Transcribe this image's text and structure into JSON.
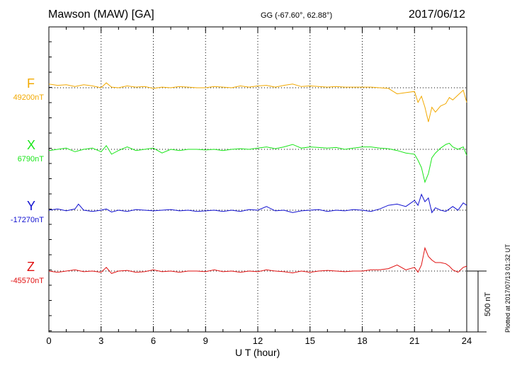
{
  "header": {
    "station": "Mawson (MAW)  [GA]",
    "coords": "GG (-67.60°,  62.88°)",
    "date": "2017/06/12"
  },
  "footer": {
    "xlabel": "U T (hour)",
    "plotted": "Plotted at 2017/07/13 01:32 UT"
  },
  "scale_bar": {
    "label": "500 nT",
    "value_nT": 500
  },
  "colors": {
    "F": "#f2a900",
    "X": "#19e619",
    "Y": "#1010d0",
    "Z": "#e01010"
  },
  "chart_data": {
    "type": "line",
    "xlabel": "U T (hour)",
    "xlim": [
      0,
      24
    ],
    "xticks": [
      0,
      3,
      6,
      9,
      12,
      15,
      18,
      21,
      24
    ],
    "xtick_labels": [
      "0",
      "3",
      "6",
      "9",
      "12",
      "15",
      "18",
      "21",
      "24"
    ],
    "y_unit": "nT",
    "series": [
      {
        "name": "F",
        "baseline_label": "49200nT",
        "baseline_nT": 49200,
        "x": [
          0,
          0.5,
          1,
          1.5,
          2,
          2.5,
          3,
          3.3,
          3.6,
          4,
          4.5,
          5,
          5.5,
          6,
          6.5,
          7,
          7.5,
          8,
          8.5,
          9,
          9.5,
          10,
          10.5,
          11,
          11.5,
          12,
          12.5,
          13,
          13.5,
          14,
          14.5,
          15,
          15.5,
          16,
          16.5,
          17,
          17.5,
          18,
          18.5,
          19,
          19.5,
          20,
          20.5,
          21,
          21.2,
          21.4,
          21.6,
          21.8,
          22,
          22.2,
          22.5,
          22.8,
          23,
          23.2,
          23.5,
          23.8,
          24
        ],
        "values": [
          49230,
          49220,
          49225,
          49210,
          49225,
          49215,
          49200,
          49240,
          49205,
          49200,
          49215,
          49205,
          49210,
          49195,
          49205,
          49200,
          49210,
          49205,
          49200,
          49200,
          49210,
          49205,
          49200,
          49215,
          49205,
          49215,
          49220,
          49205,
          49220,
          49230,
          49210,
          49215,
          49210,
          49205,
          49210,
          49205,
          49205,
          49205,
          49205,
          49200,
          49195,
          49150,
          49160,
          49170,
          49080,
          49130,
          49040,
          48920,
          49040,
          49000,
          49050,
          49070,
          49120,
          49100,
          49140,
          49180,
          49080
        ]
      },
      {
        "name": "X",
        "baseline_label": "6790nT",
        "baseline_nT": 6790,
        "x": [
          0,
          0.5,
          1,
          1.5,
          2,
          2.5,
          3,
          3.3,
          3.6,
          4,
          4.5,
          5,
          5.5,
          6,
          6.5,
          7,
          7.5,
          8,
          8.5,
          9,
          9.5,
          10,
          10.5,
          11,
          11.5,
          12,
          12.5,
          13,
          13.5,
          14,
          14.5,
          15,
          15.5,
          16,
          16.5,
          17,
          17.5,
          18,
          18.5,
          19,
          19.5,
          20,
          20.5,
          21,
          21.2,
          21.4,
          21.6,
          21.8,
          22,
          22.2,
          22.5,
          22.8,
          23,
          23.2,
          23.5,
          23.8,
          24
        ],
        "values": [
          6780,
          6790,
          6800,
          6770,
          6790,
          6800,
          6770,
          6820,
          6750,
          6780,
          6810,
          6780,
          6790,
          6800,
          6760,
          6790,
          6780,
          6790,
          6790,
          6785,
          6790,
          6780,
          6790,
          6795,
          6790,
          6800,
          6810,
          6795,
          6810,
          6830,
          6800,
          6810,
          6805,
          6800,
          6805,
          6790,
          6800,
          6810,
          6810,
          6800,
          6795,
          6780,
          6760,
          6750,
          6700,
          6640,
          6520,
          6590,
          6720,
          6760,
          6800,
          6830,
          6840,
          6810,
          6790,
          6810,
          6740
        ]
      },
      {
        "name": "Y",
        "baseline_label": "-17270nT",
        "baseline_nT": -17270,
        "x": [
          0,
          0.5,
          1,
          1.5,
          1.7,
          2,
          2.5,
          3,
          3.3,
          3.6,
          4,
          4.5,
          5,
          5.5,
          6,
          6.5,
          7,
          7.5,
          8,
          8.5,
          9,
          9.5,
          10,
          10.5,
          11,
          11.5,
          12,
          12.5,
          13,
          13.5,
          14,
          14.5,
          15,
          15.5,
          16,
          16.5,
          17,
          17.5,
          18,
          18.5,
          19,
          19.5,
          20,
          20.5,
          21,
          21.2,
          21.4,
          21.6,
          21.8,
          22,
          22.2,
          22.5,
          22.8,
          23,
          23.2,
          23.5,
          23.8,
          24
        ],
        "values": [
          -17270,
          -17260,
          -17275,
          -17260,
          -17220,
          -17270,
          -17280,
          -17270,
          -17260,
          -17285,
          -17270,
          -17280,
          -17265,
          -17270,
          -17275,
          -17270,
          -17265,
          -17275,
          -17270,
          -17280,
          -17275,
          -17270,
          -17280,
          -17270,
          -17280,
          -17265,
          -17270,
          -17240,
          -17275,
          -17270,
          -17290,
          -17275,
          -17270,
          -17265,
          -17280,
          -17270,
          -17275,
          -17265,
          -17270,
          -17280,
          -17260,
          -17230,
          -17220,
          -17240,
          -17190,
          -17230,
          -17140,
          -17200,
          -17170,
          -17290,
          -17250,
          -17270,
          -17280,
          -17260,
          -17240,
          -17270,
          -17210,
          -17230
        ]
      },
      {
        "name": "Z",
        "baseline_label": "-45570nT",
        "baseline_nT": -45570,
        "x": [
          0,
          0.5,
          1,
          1.5,
          2,
          2.5,
          3,
          3.3,
          3.6,
          4,
          4.5,
          5,
          5.5,
          6,
          6.5,
          7,
          7.5,
          8,
          8.5,
          9,
          9.5,
          10,
          10.5,
          11,
          11.5,
          12,
          12.5,
          13,
          13.5,
          14,
          14.5,
          15,
          15.5,
          16,
          16.5,
          17,
          17.5,
          18,
          18.5,
          19,
          19.5,
          20,
          20.5,
          21,
          21.2,
          21.4,
          21.6,
          21.8,
          22,
          22.2,
          22.5,
          22.8,
          23,
          23.2,
          23.5,
          23.8,
          24
        ],
        "values": [
          -45570,
          -45580,
          -45570,
          -45560,
          -45575,
          -45570,
          -45580,
          -45540,
          -45590,
          -45570,
          -45565,
          -45580,
          -45575,
          -45560,
          -45575,
          -45570,
          -45580,
          -45570,
          -45570,
          -45575,
          -45560,
          -45575,
          -45570,
          -45580,
          -45570,
          -45575,
          -45560,
          -45570,
          -45575,
          -45585,
          -45570,
          -45580,
          -45570,
          -45565,
          -45570,
          -45575,
          -45570,
          -45570,
          -45560,
          -45560,
          -45550,
          -45520,
          -45560,
          -45540,
          -45580,
          -45520,
          -45380,
          -45450,
          -45480,
          -45500,
          -45500,
          -45510,
          -45530,
          -45560,
          -45580,
          -45540,
          -45530
        ]
      }
    ]
  }
}
